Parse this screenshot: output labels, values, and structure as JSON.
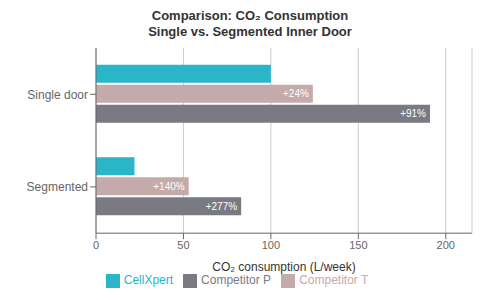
{
  "chart_data": {
    "type": "bar",
    "orientation": "horizontal",
    "title": "Comparison: CO₂ Consumption\nSingle vs. Segmented Inner Door",
    "categories": [
      "Single door",
      "Segmented"
    ],
    "series": [
      {
        "name": "CellXpert",
        "color": "#2ab5c8",
        "values": [
          100,
          22
        ]
      },
      {
        "name": "Competitor T",
        "color": "#c4aaaa",
        "values": [
          124,
          53
        ]
      },
      {
        "name": "Competitor P",
        "color": "#7a7a82",
        "values": [
          191,
          83
        ]
      }
    ],
    "annotations": [
      {
        "text": "+24%",
        "series": "Competitor T",
        "category": "Single door"
      },
      {
        "text": "+91%",
        "series": "Competitor P",
        "category": "Single door"
      },
      {
        "text": "+140%",
        "series": "Competitor T",
        "category": "Segmented"
      },
      {
        "text": "+277%",
        "series": "Competitor P",
        "category": "Segmented"
      }
    ],
    "xlabel": "CO₂ consumption (L/week)",
    "xlim": [
      0,
      215
    ],
    "xticks": [
      0,
      50,
      100,
      150,
      200
    ],
    "grid": true
  }
}
